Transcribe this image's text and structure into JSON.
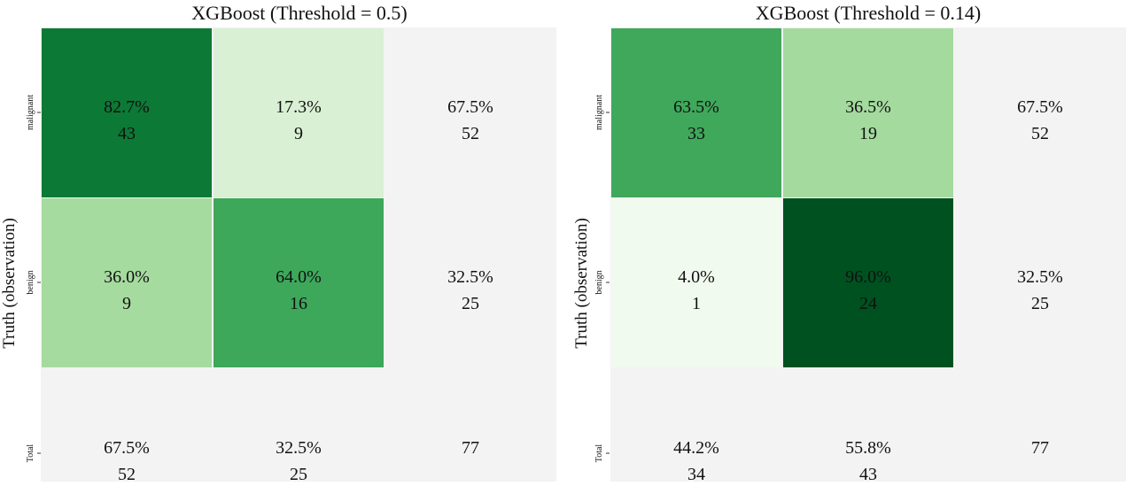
{
  "chart_data": [
    {
      "type": "heatmap",
      "title": "XGBoost (Threshold = 0.5)",
      "ylabel": "Truth (observation)",
      "row_labels": [
        "malignant",
        "benign",
        "Total"
      ],
      "cells": [
        [
          {
            "pct": "82.7%",
            "count": "43",
            "fraction": 0.827
          },
          {
            "pct": "17.3%",
            "count": "9",
            "fraction": 0.173
          },
          {
            "pct": "67.5%",
            "count": "52",
            "fraction": null
          }
        ],
        [
          {
            "pct": "36.0%",
            "count": "9",
            "fraction": 0.36
          },
          {
            "pct": "64.0%",
            "count": "16",
            "fraction": 0.64
          },
          {
            "pct": "32.5%",
            "count": "25",
            "fraction": null
          }
        ],
        [
          {
            "pct": "67.5%",
            "count": "52",
            "fraction": null
          },
          {
            "pct": "32.5%",
            "count": "25",
            "fraction": null
          },
          {
            "pct": "",
            "count": "77",
            "fraction": null
          }
        ]
      ],
      "colormap": "Greens",
      "total_cell_color": "#f3f3f3"
    },
    {
      "type": "heatmap",
      "title": "XGBoost (Threshold = 0.14)",
      "ylabel": "Truth (observation)",
      "row_labels": [
        "malignant",
        "benign",
        "Total"
      ],
      "cells": [
        [
          {
            "pct": "63.5%",
            "count": "33",
            "fraction": 0.635
          },
          {
            "pct": "36.5%",
            "count": "19",
            "fraction": 0.365
          },
          {
            "pct": "67.5%",
            "count": "52",
            "fraction": null
          }
        ],
        [
          {
            "pct": "4.0%",
            "count": "1",
            "fraction": 0.04
          },
          {
            "pct": "96.0%",
            "count": "24",
            "fraction": 0.96
          },
          {
            "pct": "32.5%",
            "count": "25",
            "fraction": null
          }
        ],
        [
          {
            "pct": "44.2%",
            "count": "34",
            "fraction": null
          },
          {
            "pct": "55.8%",
            "count": "43",
            "fraction": null
          },
          {
            "pct": "",
            "count": "77",
            "fraction": null
          }
        ]
      ],
      "colormap": "Greens",
      "total_cell_color": "#f3f3f3"
    }
  ]
}
